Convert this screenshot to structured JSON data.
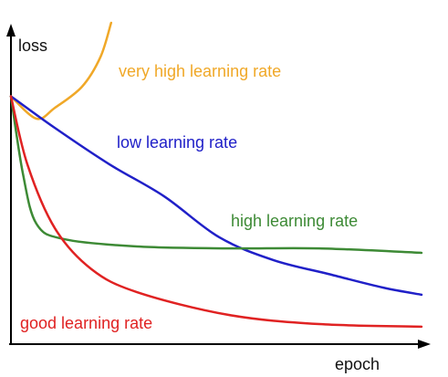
{
  "chart_data": {
    "type": "line",
    "x_label": "epoch",
    "y_label": "loss",
    "xlim": [
      0,
      100
    ],
    "ylim": [
      0,
      100
    ],
    "series": [
      {
        "name": "very high learning rate",
        "color": "#f0a828",
        "x": [
          0,
          6.2,
          10.7,
          17.3,
          21.8,
          24.4
        ],
        "values": [
          77,
          70,
          73.4,
          80,
          89.3,
          100
        ]
      },
      {
        "name": "low learning rate",
        "color": "#2020c8",
        "x": [
          0,
          10.7,
          24,
          37.3,
          50.7,
          64,
          77.3,
          90.7,
          100
        ],
        "values": [
          77,
          67.1,
          55.7,
          45.7,
          32.9,
          25.7,
          21.4,
          17.1,
          14.9
        ]
      },
      {
        "name": "high learning rate",
        "color": "#3d8a35",
        "x": [
          0,
          2.9,
          6.2,
          12.9,
          30.7,
          52.9,
          75.1,
          100
        ],
        "values": [
          77,
          52.9,
          37.1,
          32.3,
          30,
          29.4,
          29.4,
          28
        ]
      },
      {
        "name": "good learning rate",
        "color": "#e02222",
        "x": [
          0,
          4,
          10.7,
          19.6,
          30.7,
          52.9,
          75.1,
          100
        ],
        "values": [
          77,
          55.7,
          35.7,
          22.9,
          15.7,
          8.6,
          5.7,
          4.9
        ]
      }
    ]
  }
}
